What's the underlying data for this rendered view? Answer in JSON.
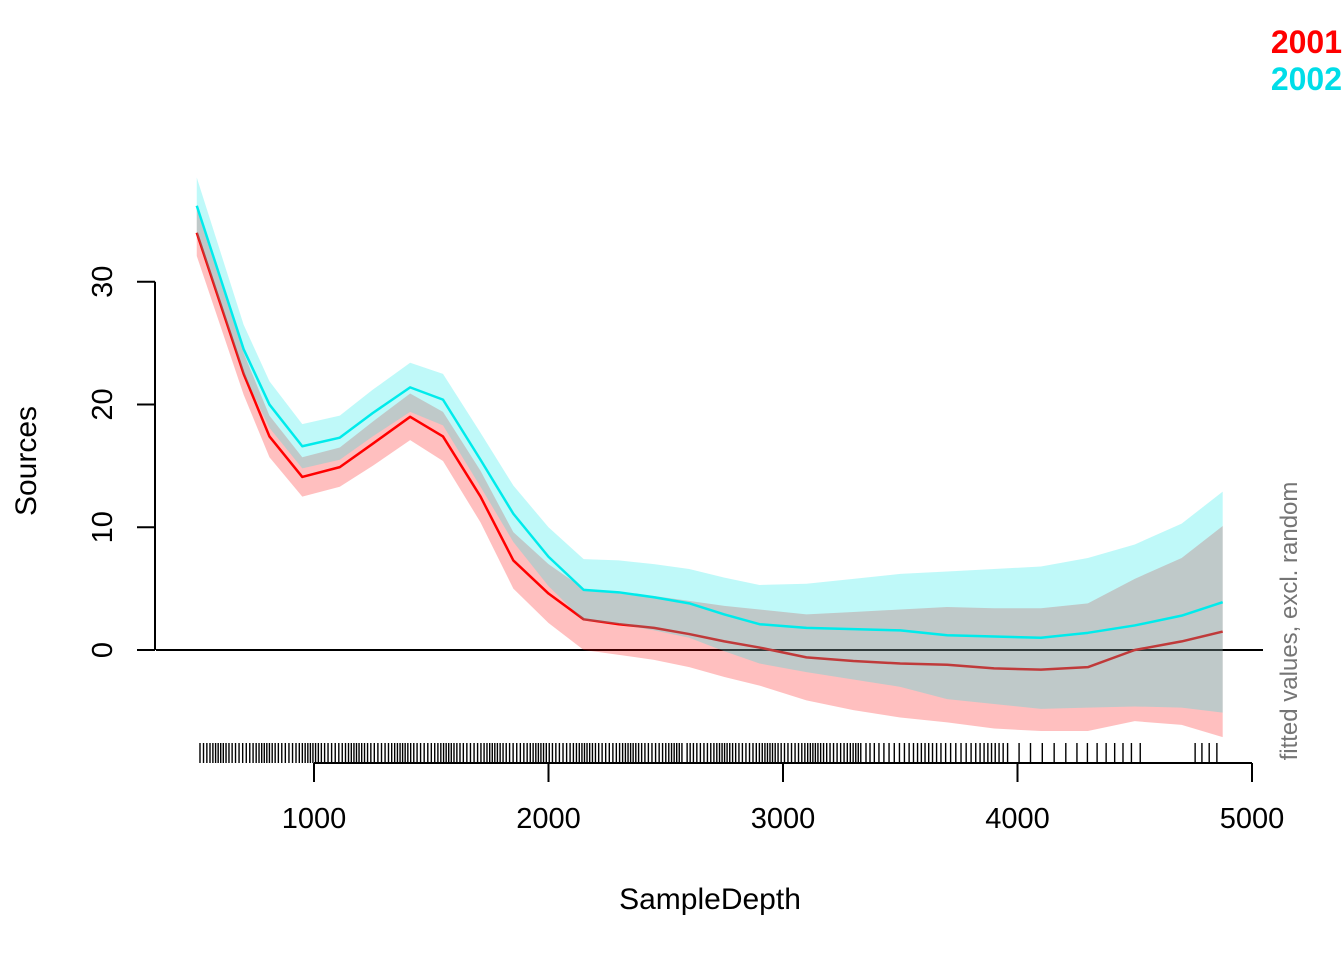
{
  "chart_data": {
    "type": "line",
    "title": "",
    "xlabel": "SampleDepth",
    "ylabel": "Sources",
    "right_annotation": "fitted values, excl. random",
    "legend": {
      "position": "top-right",
      "items": [
        {
          "label": "2001",
          "color": "#ff0000"
        },
        {
          "label": "2002",
          "color": "#00dde8"
        }
      ]
    },
    "axes": {
      "x_ticks": [
        1000,
        2000,
        3000,
        4000,
        5000
      ],
      "x_tick_labels": [
        "1000",
        "2000",
        "3000",
        "4000",
        "5000"
      ],
      "y_ticks": [
        0,
        10,
        20,
        30
      ],
      "y_tick_labels": [
        "0",
        "10",
        "20",
        "30"
      ],
      "xlim": [
        500,
        5000
      ],
      "ylim": [
        -9,
        39
      ],
      "grid": false,
      "zero_reference_line": 0
    },
    "x": [
      500,
      700,
      810,
      950,
      1110,
      1250,
      1410,
      1550,
      1710,
      1850,
      2000,
      2150,
      2300,
      2450,
      2600,
      2750,
      2900,
      3100,
      3300,
      3500,
      3700,
      3900,
      4100,
      4300,
      4500,
      4700,
      4875
    ],
    "series": [
      {
        "name": "2001",
        "line_color": "#ff0000",
        "band_color": "rgba(255,0,0,0.25)",
        "fit": [
          34.0,
          22.5,
          17.4,
          14.1,
          14.9,
          16.8,
          19.0,
          17.4,
          12.5,
          7.3,
          4.6,
          2.5,
          2.1,
          1.8,
          1.3,
          0.7,
          0.2,
          -0.6,
          -0.9,
          -1.1,
          -1.2,
          -1.5,
          -1.6,
          -1.4,
          0.0,
          0.7,
          1.5
        ],
        "lower": [
          32.1,
          20.8,
          15.7,
          12.5,
          13.3,
          15.0,
          17.1,
          15.4,
          10.4,
          5.0,
          2.2,
          0.0,
          -0.4,
          -0.8,
          -1.4,
          -2.2,
          -2.9,
          -4.1,
          -4.9,
          -5.5,
          -5.9,
          -6.4,
          -6.6,
          -6.6,
          -5.8,
          -6.1,
          -7.1
        ],
        "upper": [
          35.9,
          24.2,
          19.1,
          15.7,
          16.5,
          18.6,
          20.9,
          19.4,
          14.6,
          9.6,
          7.0,
          5.0,
          4.6,
          4.4,
          4.0,
          3.6,
          3.3,
          2.9,
          3.1,
          3.3,
          3.5,
          3.4,
          3.4,
          3.8,
          5.8,
          7.5,
          10.1
        ]
      },
      {
        "name": "2002",
        "line_color": "#00ebeb",
        "band_color": "rgba(0,230,230,0.25)",
        "fit": [
          36.2,
          24.5,
          20.0,
          16.6,
          17.3,
          19.3,
          21.4,
          20.4,
          15.5,
          11.1,
          7.6,
          4.9,
          4.7,
          4.3,
          3.8,
          2.9,
          2.1,
          1.8,
          1.7,
          1.6,
          1.2,
          1.1,
          1.0,
          1.4,
          2.0,
          2.8,
          3.9
        ],
        "lower": [
          33.9,
          22.5,
          18.1,
          14.8,
          15.5,
          17.4,
          19.4,
          18.3,
          13.3,
          8.8,
          5.2,
          2.4,
          2.1,
          1.6,
          1.0,
          -0.1,
          -1.1,
          -1.8,
          -2.4,
          -3.0,
          -4.0,
          -4.4,
          -4.8,
          -4.7,
          -4.6,
          -4.7,
          -5.1
        ],
        "upper": [
          38.5,
          26.5,
          21.9,
          18.4,
          19.1,
          21.2,
          23.4,
          22.5,
          17.7,
          13.4,
          10.0,
          7.4,
          7.3,
          7.0,
          6.6,
          5.9,
          5.3,
          5.4,
          5.8,
          6.2,
          6.4,
          6.6,
          6.8,
          7.5,
          8.6,
          10.3,
          12.9
        ]
      }
    ],
    "rug": {
      "axis": "x",
      "segments": [
        {
          "from": 505,
          "to": 2580,
          "count": 158
        },
        {
          "from": 2590,
          "to": 3340,
          "count": 58
        },
        {
          "from": 3350,
          "to": 3975,
          "count": 33
        },
        {
          "from": 4000,
          "to": 4560,
          "count": 13
        },
        {
          "from": 4755,
          "to": 4870,
          "count": 4
        }
      ]
    },
    "colors": {
      "axis": "#000000",
      "zero_line": "#000000",
      "right_annotation_text": "#757575",
      "tick_label_text": "#000000"
    }
  }
}
